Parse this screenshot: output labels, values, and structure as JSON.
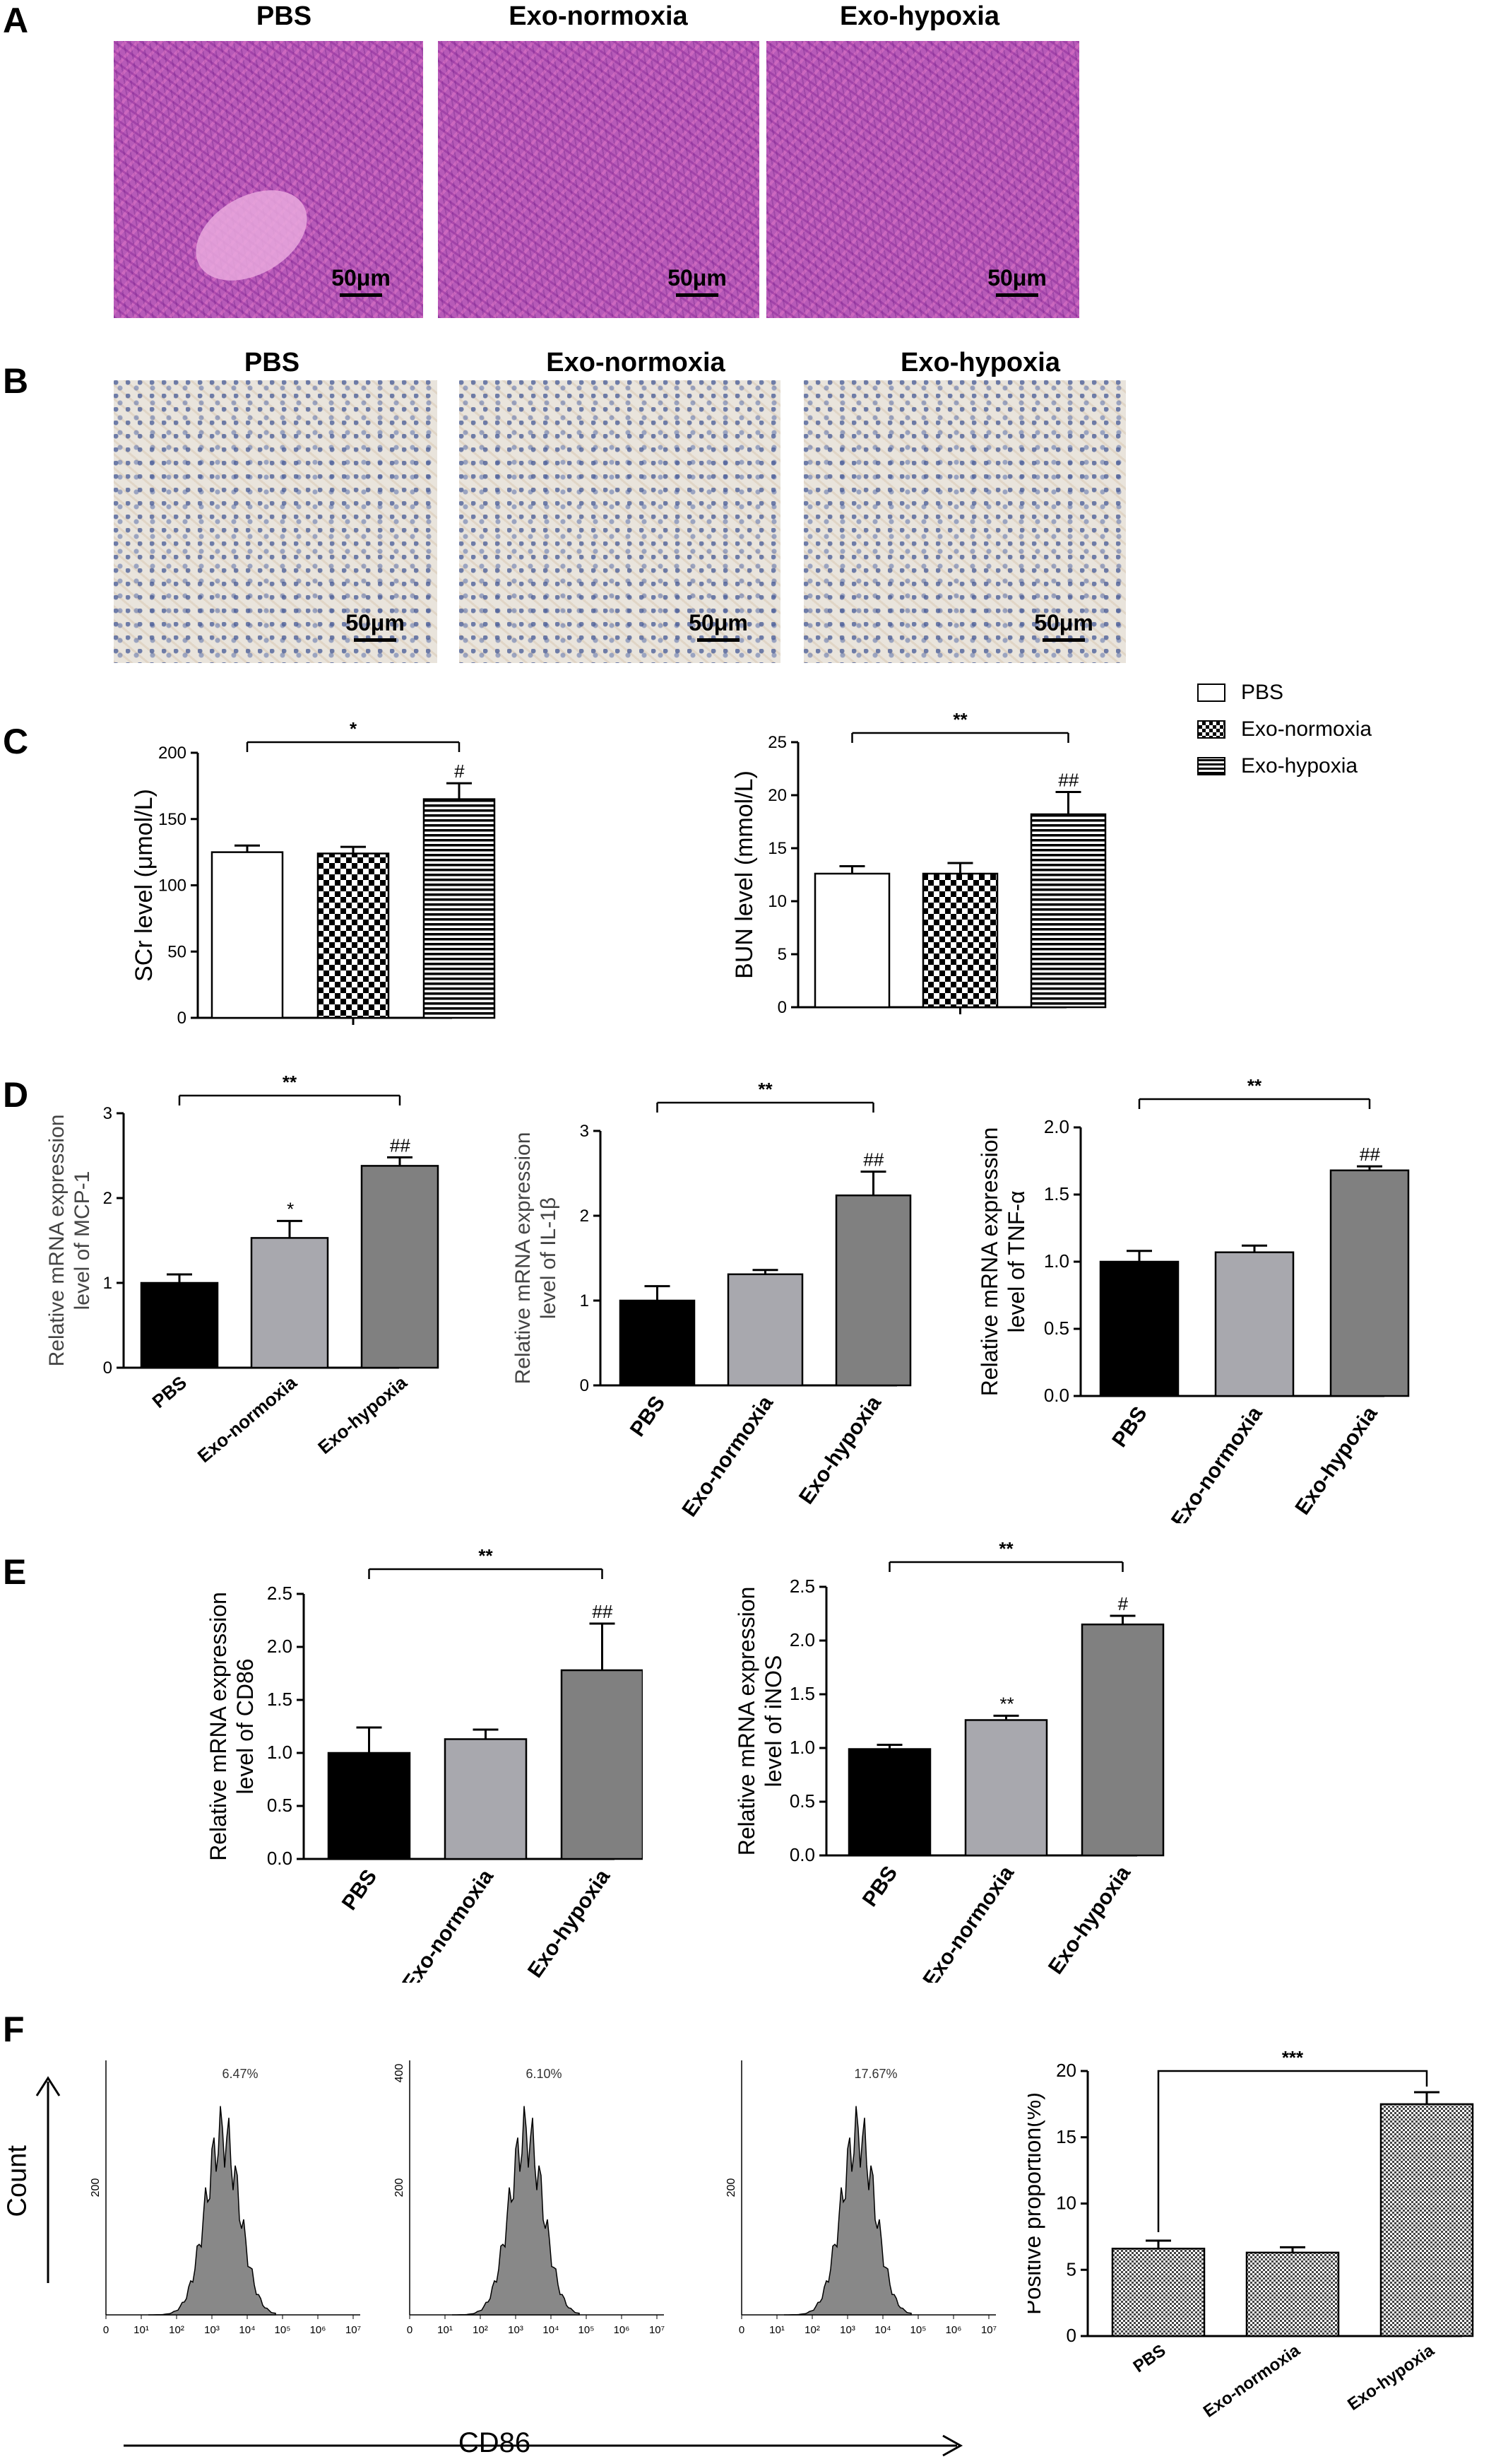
{
  "panels": {
    "A": {
      "label": "A",
      "titles": [
        "PBS",
        "Exo-normoxia",
        "Exo-hypoxia"
      ],
      "scale_bar": "50μm"
    },
    "B": {
      "label": "B",
      "titles": [
        "PBS",
        "Exo-normoxia",
        "Exo-hypoxia"
      ],
      "scale_bar": "50μm"
    },
    "C": {
      "label": "C"
    },
    "D": {
      "label": "D"
    },
    "E": {
      "label": "E"
    },
    "F": {
      "label": "F"
    }
  },
  "legend": {
    "items": [
      {
        "label": "PBS",
        "pattern": "white"
      },
      {
        "label": "Exo-normoxia",
        "pattern": "checker"
      },
      {
        "label": "Exo-hypoxia",
        "pattern": "hstripe"
      }
    ]
  },
  "chart_data": [
    {
      "id": "C1",
      "type": "bar",
      "ylabel": "SCr level (μmol/L)",
      "categories": [
        "PBS",
        "Exo-normoxia",
        "Exo-hypoxia"
      ],
      "values": [
        125,
        124,
        165
      ],
      "errors": [
        5,
        5,
        12
      ],
      "ylim": [
        0,
        200
      ],
      "yticks": [
        "0",
        "50",
        "100",
        "150",
        "200"
      ],
      "ytick_values": [
        0,
        50,
        100,
        150,
        200
      ],
      "patterns": [
        "white",
        "checker",
        "hstripe"
      ],
      "bar_marks": [
        "",
        "",
        "#"
      ],
      "bracket": {
        "from": 0,
        "to": 2,
        "label": "*"
      },
      "show_xlabels": false
    },
    {
      "id": "C2",
      "type": "bar",
      "ylabel": "BUN level (mmol/L)",
      "categories": [
        "PBS",
        "Exo-normoxia",
        "Exo-hypoxia"
      ],
      "values": [
        12.6,
        12.6,
        18.2
      ],
      "errors": [
        0.7,
        1.0,
        2.1
      ],
      "ylim": [
        0,
        25
      ],
      "yticks": [
        "0",
        "5",
        "10",
        "15",
        "20",
        "25"
      ],
      "ytick_values": [
        0,
        5,
        10,
        15,
        20,
        25
      ],
      "patterns": [
        "white",
        "checker",
        "hstripe"
      ],
      "bar_marks": [
        "",
        "",
        "##"
      ],
      "bracket": {
        "from": 0,
        "to": 2,
        "label": "**"
      },
      "show_xlabels": false
    },
    {
      "id": "D1",
      "type": "bar",
      "ylabel_lines": [
        "Relative mRNA expression",
        "level of MCP-1"
      ],
      "categories": [
        "PBS",
        "Exo-normoxia",
        "Exo-hypoxia"
      ],
      "values": [
        1.0,
        1.53,
        2.38
      ],
      "errors": [
        0.1,
        0.2,
        0.1
      ],
      "ylim": [
        0,
        3
      ],
      "yticks": [
        "0",
        "1",
        "2",
        "3"
      ],
      "ytick_values": [
        0,
        1,
        2,
        3
      ],
      "colors": [
        "#000000",
        "#a8a8ae",
        "#808080"
      ],
      "bar_marks": [
        "",
        "*",
        "##"
      ],
      "bracket": {
        "from": 0,
        "to": 2,
        "label": "**"
      },
      "show_xlabels": true,
      "xlabel_font": "serif"
    },
    {
      "id": "D2",
      "type": "bar",
      "ylabel_lines": [
        "Relative mRNA expression",
        "level of IL-1β"
      ],
      "categories": [
        "PBS",
        "Exo-normoxia",
        "Exo-hypoxia"
      ],
      "values": [
        1.0,
        1.31,
        2.24
      ],
      "errors": [
        0.17,
        0.05,
        0.28
      ],
      "ylim": [
        0,
        3
      ],
      "yticks": [
        "0",
        "1",
        "2",
        "3"
      ],
      "ytick_values": [
        0,
        1,
        2,
        3
      ],
      "colors": [
        "#000000",
        "#a8a8ae",
        "#808080"
      ],
      "bar_marks": [
        "",
        "",
        "##"
      ],
      "bracket": {
        "from": 0,
        "to": 2,
        "label": "**"
      },
      "show_xlabels": true
    },
    {
      "id": "D3",
      "type": "bar",
      "ylabel_lines": [
        "Relative mRNA expression",
        "level of TNF-α"
      ],
      "categories": [
        "PBS",
        "Exo-normoxia",
        "Exo-hypoxia"
      ],
      "values": [
        1.0,
        1.07,
        1.68
      ],
      "errors": [
        0.08,
        0.05,
        0.03
      ],
      "ylim": [
        0,
        2.0
      ],
      "yticks": [
        "0.0",
        "0.5",
        "1.0",
        "1.5",
        "2.0"
      ],
      "ytick_values": [
        0,
        0.5,
        1,
        1.5,
        2
      ],
      "colors": [
        "#000000",
        "#a8a8ae",
        "#808080"
      ],
      "bar_marks": [
        "",
        "",
        "##"
      ],
      "bracket": {
        "from": 0,
        "to": 2,
        "label": "**"
      },
      "show_xlabels": true
    },
    {
      "id": "E1",
      "type": "bar",
      "ylabel_lines": [
        "Relative mRNA expression",
        "level of CD86"
      ],
      "categories": [
        "PBS",
        "Exo-normoxia",
        "Exo-hypoxia"
      ],
      "values": [
        1.0,
        1.13,
        1.78
      ],
      "errors": [
        0.24,
        0.09,
        0.44
      ],
      "ylim": [
        0,
        2.5
      ],
      "yticks": [
        "0.0",
        "0.5",
        "1.0",
        "1.5",
        "2.0",
        "2.5"
      ],
      "ytick_values": [
        0,
        0.5,
        1,
        1.5,
        2,
        2.5
      ],
      "colors": [
        "#000000",
        "#a8a8ae",
        "#808080"
      ],
      "bar_marks": [
        "",
        "",
        "##"
      ],
      "bracket": {
        "from": 0,
        "to": 2,
        "label": "**"
      },
      "show_xlabels": true
    },
    {
      "id": "E2",
      "type": "bar",
      "ylabel_lines": [
        "Relative mRNA expression",
        "level of iNOS"
      ],
      "categories": [
        "PBS",
        "Exo-normoxia",
        "Exo-hypoxia"
      ],
      "values": [
        0.99,
        1.26,
        2.15
      ],
      "errors": [
        0.04,
        0.04,
        0.08
      ],
      "ylim": [
        0,
        2.5
      ],
      "yticks": [
        "0.0",
        "0.5",
        "1.0",
        "1.5",
        "2.0",
        "2.5"
      ],
      "ytick_values": [
        0,
        0.5,
        1,
        1.5,
        2,
        2.5
      ],
      "colors": [
        "#000000",
        "#a8a8ae",
        "#808080"
      ],
      "bar_marks": [
        "",
        "**",
        "#"
      ],
      "bracket": {
        "from": 0,
        "to": 2,
        "label": "**"
      },
      "show_xlabels": true
    },
    {
      "id": "F1",
      "type": "histogram",
      "group": "PBS",
      "percent": "6.47%",
      "ytick": "200",
      "ymax_tick": "",
      "xticks": [
        "0",
        "10¹",
        "10²",
        "10³",
        "10⁴",
        "10⁵",
        "10⁶",
        "10⁷"
      ]
    },
    {
      "id": "F2",
      "type": "histogram",
      "group": "Exo-normoxia",
      "percent": "6.10%",
      "ytick": "200",
      "ymax_tick": "400",
      "xticks": [
        "0",
        "10¹",
        "10²",
        "10³",
        "10⁴",
        "10⁵",
        "10⁶",
        "10⁷"
      ]
    },
    {
      "id": "F3",
      "type": "histogram",
      "group": "Exo-hypoxia",
      "percent": "17.67%",
      "ytick": "200",
      "ymax_tick": "",
      "xticks": [
        "0",
        "10¹",
        "10²",
        "10³",
        "10⁴",
        "10⁵",
        "10⁶",
        "10⁷"
      ]
    },
    {
      "id": "F4",
      "type": "bar",
      "ylabel": "Positive proportion(%)",
      "categories": [
        "PBS",
        "Exo-normoxia",
        "Exo-hypoxia"
      ],
      "values": [
        6.6,
        6.3,
        17.5
      ],
      "errors": [
        0.6,
        0.4,
        0.9
      ],
      "ylim": [
        0,
        20
      ],
      "yticks": [
        "0",
        "5",
        "10",
        "15",
        "20"
      ],
      "ytick_values": [
        0,
        5,
        10,
        15,
        20
      ],
      "patterns": [
        "fcheck",
        "fcheck",
        "fcheck"
      ],
      "bar_marks": [
        "",
        "",
        ""
      ],
      "bracket": {
        "from": 0,
        "to": 2,
        "label": "***",
        "style": "hook"
      },
      "show_xlabels": true,
      "xlabel_small": true
    }
  ],
  "flow_axis": {
    "y_label": "Count",
    "x_label": "CD86"
  }
}
